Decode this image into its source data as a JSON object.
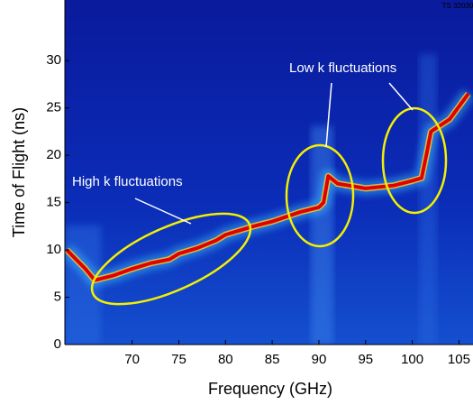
{
  "chart_data": {
    "type": "line",
    "x_label": "Frequency (GHz)",
    "y_label": "Time of Flight (ns)",
    "x": [
      63,
      65,
      66,
      68,
      70,
      72,
      74,
      75,
      77,
      79,
      80,
      83,
      85,
      88,
      90,
      90.5,
      91,
      92,
      95,
      98,
      100,
      101,
      101.5,
      102,
      104,
      106
    ],
    "series": [
      {
        "color": "#e00000",
        "values": [
          10,
          8,
          6.8,
          7.3,
          8,
          8.6,
          9,
          9.6,
          10.2,
          11,
          11.6,
          12.5,
          13,
          14,
          14.5,
          15,
          17.8,
          17,
          16.5,
          16.8,
          17.3,
          17.6,
          20,
          22.5,
          23.8,
          26.5
        ]
      }
    ],
    "xlim": [
      62.8,
      106.5
    ],
    "ylim": [
      0,
      36.4
    ],
    "xticks": [
      70,
      75,
      80,
      85,
      90,
      95,
      100,
      105
    ],
    "yticks": [
      0,
      5,
      10,
      15,
      20,
      25,
      30
    ],
    "annotations": [
      "High k fluctuations",
      "Low k fluctuations"
    ],
    "stamp": "TS 32030"
  }
}
